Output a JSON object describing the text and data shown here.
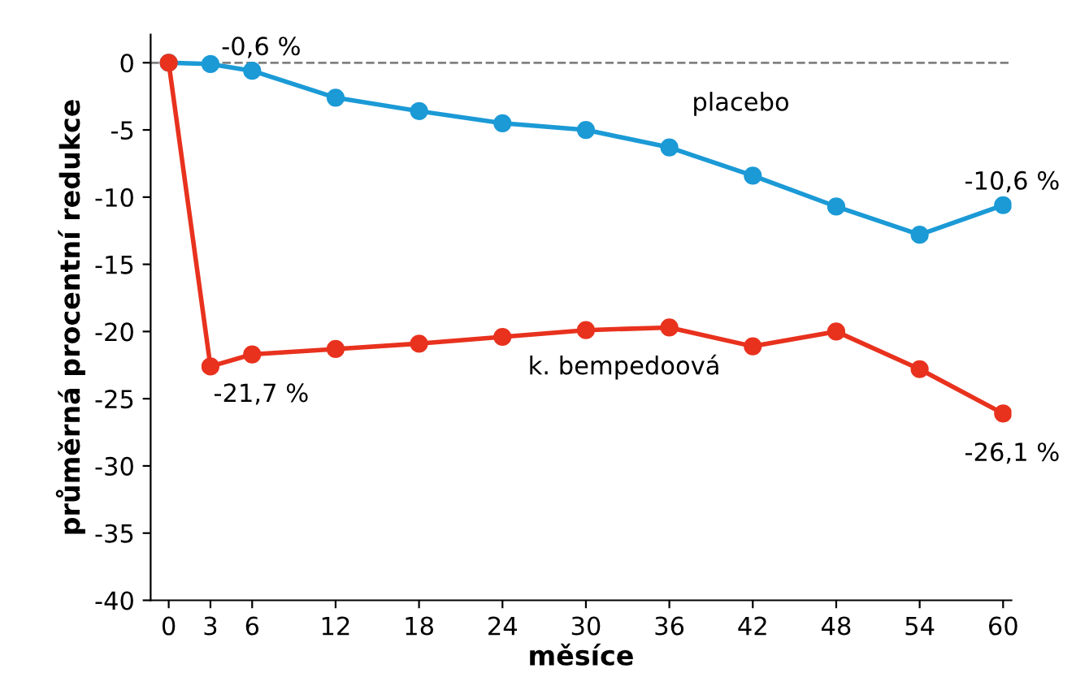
{
  "chart_data": {
    "type": "line",
    "xlabel": "měsíce",
    "ylabel": "průměrná procentní redukce",
    "x": [
      0,
      3,
      6,
      12,
      18,
      24,
      30,
      36,
      42,
      48,
      54,
      60
    ],
    "series": [
      {
        "name": "placebo",
        "color": "#1b9ad6",
        "values": [
          0,
          -0.1,
          -0.6,
          -2.6,
          -3.6,
          -4.5,
          -5.0,
          -6.3,
          -8.4,
          -10.7,
          -12.8,
          -10.6
        ],
        "value_labels": [
          null,
          null,
          "-0,6 %",
          null,
          null,
          null,
          null,
          null,
          null,
          null,
          null,
          "-10,6 %"
        ]
      },
      {
        "name": "k. bempedoová",
        "color": "#e8321e",
        "values": [
          0,
          -22.6,
          -21.7,
          -21.3,
          -20.9,
          -20.4,
          -19.9,
          -19.7,
          -21.1,
          -20.0,
          -22.8,
          -26.1
        ],
        "value_labels": [
          null,
          null,
          "-21,7 %",
          null,
          null,
          null,
          null,
          null,
          null,
          null,
          null,
          "-26,1 %"
        ]
      }
    ],
    "ref_lines": [
      {
        "axis": "y",
        "value": 0,
        "label": null,
        "color": "#808080",
        "line_style": "dashed"
      }
    ],
    "xlim": [
      -1.3,
      60.6
    ],
    "ylim": [
      -40,
      2.1
    ],
    "xticks": [
      0,
      3,
      6,
      12,
      18,
      24,
      30,
      36,
      42,
      48,
      54,
      60
    ],
    "yticks": [
      0,
      -5,
      -10,
      -15,
      -20,
      -25,
      -30,
      -35,
      -40
    ],
    "marker": "circle",
    "line_style": "solid",
    "grid": false,
    "legend": false
  }
}
